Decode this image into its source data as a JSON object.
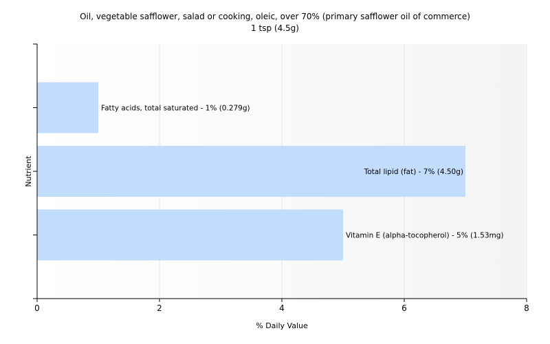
{
  "chart_data": {
    "type": "bar",
    "orientation": "horizontal",
    "title": "Oil, vegetable safflower, salad or cooking, oleic, over 70% (primary safflower oil of commerce)",
    "subtitle": "1 tsp (4.5g)",
    "xlabel": "% Daily Value",
    "ylabel": "Nutrient",
    "xlim": [
      0,
      8
    ],
    "xticks": [
      "0",
      "2",
      "4",
      "6",
      "8"
    ],
    "grid": true,
    "legend": "none",
    "categories": [
      "Fatty acids, total saturated - 1% (0.279g)",
      "Total lipid (fat) - 7% (4.50g)",
      "Vitamin E (alpha-tocopherol) - 5% (1.53mg)"
    ],
    "values": [
      1,
      7,
      5
    ],
    "colors": {
      "bar": "#c2dcfc",
      "plot_background": "#f7f7f7",
      "gridline": "#e4e4e4",
      "axis": "#000000",
      "text": "#000000"
    }
  }
}
